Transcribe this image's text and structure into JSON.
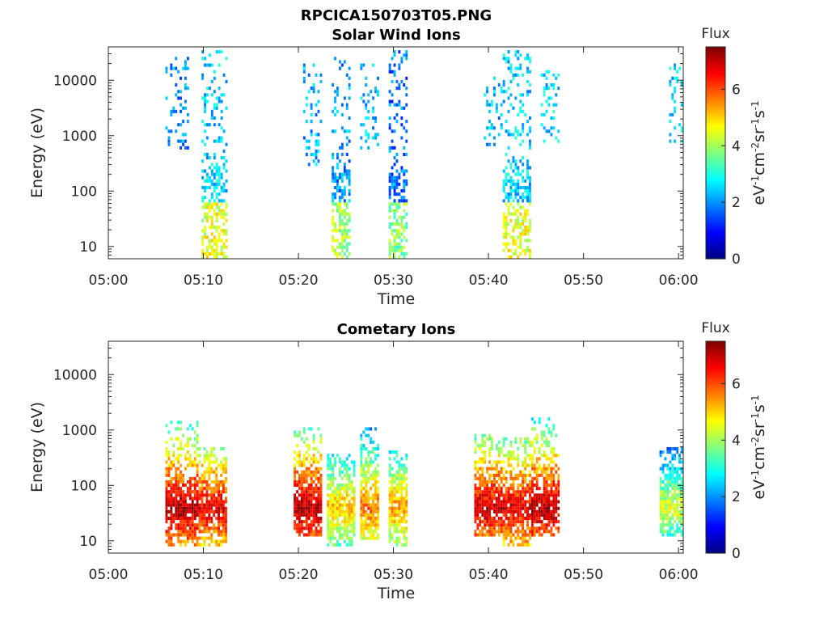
{
  "figure_title": "RPCICA150703T05.PNG",
  "colorbar_title": "Flux",
  "colorbar_label": "eV^-1cm^-2sr^-1s^-1",
  "chart_data": [
    {
      "type": "heatmap",
      "title": "Solar Wind Ions",
      "xlabel": "Time",
      "ylabel": "Energy (eV)",
      "x_ticks": [
        "05:00",
        "05:10",
        "05:20",
        "05:30",
        "05:40",
        "05:50",
        "06:00"
      ],
      "xlim_minutes": [
        0,
        60.5
      ],
      "y_ticks": [
        10,
        100,
        1000,
        10000
      ],
      "ylim": [
        6,
        40000
      ],
      "yscale": "log",
      "colorbar": {
        "min": 0,
        "max": 7.5,
        "ticks": [
          0,
          2,
          4,
          6
        ],
        "colormap": "jet"
      },
      "bursts": [
        {
          "start_min": 6.0,
          "end_min": 8.5,
          "e_low": 600,
          "e_high": 25000,
          "flux": 2.0
        },
        {
          "start_min": 9.8,
          "end_min": 12.5,
          "e_low": 6,
          "e_high": 35000,
          "flux": 2.5
        },
        {
          "start_min": 20.5,
          "end_min": 22.5,
          "e_low": 300,
          "e_high": 20000,
          "flux": 2.2
        },
        {
          "start_min": 23.5,
          "end_min": 25.5,
          "e_low": 6,
          "e_high": 25000,
          "flux": 2.0
        },
        {
          "start_min": 26.5,
          "end_min": 28.5,
          "e_low": 600,
          "e_high": 20000,
          "flux": 2.3
        },
        {
          "start_min": 29.5,
          "end_min": 31.5,
          "e_low": 6,
          "e_high": 35000,
          "flux": 1.8
        },
        {
          "start_min": 39.5,
          "end_min": 41.5,
          "e_low": 600,
          "e_high": 12000,
          "flux": 2.3
        },
        {
          "start_min": 41.5,
          "end_min": 44.5,
          "e_low": 6,
          "e_high": 35000,
          "flux": 2.5
        },
        {
          "start_min": 45.5,
          "end_min": 47.5,
          "e_low": 700,
          "e_high": 15000,
          "flux": 2.5
        },
        {
          "start_min": 59.0,
          "end_min": 60.3,
          "e_low": 700,
          "e_high": 20000,
          "flux": 2.5
        }
      ]
    },
    {
      "type": "heatmap",
      "title": "Cometary Ions",
      "xlabel": "Time",
      "ylabel": "Energy (eV)",
      "x_ticks": [
        "05:00",
        "05:10",
        "05:20",
        "05:30",
        "05:40",
        "05:50",
        "06:00"
      ],
      "xlim_minutes": [
        0,
        60.5
      ],
      "y_ticks": [
        10,
        100,
        1000,
        10000
      ],
      "ylim": [
        6,
        40000
      ],
      "yscale": "log",
      "colorbar": {
        "min": 0,
        "max": 7.5,
        "ticks": [
          0,
          2,
          4,
          6
        ],
        "colormap": "jet"
      },
      "bursts": [
        {
          "start_min": 6.0,
          "end_min": 9.5,
          "e_low": 8,
          "e_high": 1500,
          "peak_energy": 40,
          "peak_flux": 7.2
        },
        {
          "start_min": 9.5,
          "end_min": 12.5,
          "e_low": 8,
          "e_high": 500,
          "peak_energy": 40,
          "peak_flux": 6.8
        },
        {
          "start_min": 19.5,
          "end_min": 22.5,
          "e_low": 12,
          "e_high": 1300,
          "peak_energy": 40,
          "peak_flux": 7.2
        },
        {
          "start_min": 23.0,
          "end_min": 25.8,
          "e_low": 8,
          "e_high": 350,
          "peak_energy": 40,
          "peak_flux": 5.2
        },
        {
          "start_min": 26.5,
          "end_min": 28.5,
          "e_low": 10,
          "e_high": 1200,
          "peak_energy": 40,
          "peak_flux": 5.8
        },
        {
          "start_min": 29.5,
          "end_min": 31.5,
          "e_low": 8,
          "e_high": 400,
          "peak_energy": 40,
          "peak_flux": 5.5
        },
        {
          "start_min": 38.5,
          "end_min": 41.5,
          "e_low": 12,
          "e_high": 900,
          "peak_energy": 40,
          "peak_flux": 7.0
        },
        {
          "start_min": 41.5,
          "end_min": 44.5,
          "e_low": 8,
          "e_high": 700,
          "peak_energy": 40,
          "peak_flux": 6.8
        },
        {
          "start_min": 44.5,
          "end_min": 47.5,
          "e_low": 12,
          "e_high": 1800,
          "peak_energy": 40,
          "peak_flux": 7.2
        },
        {
          "start_min": 58.0,
          "end_min": 60.3,
          "e_low": 12,
          "e_high": 500,
          "peak_energy": 40,
          "peak_flux": 4.5
        }
      ]
    }
  ]
}
